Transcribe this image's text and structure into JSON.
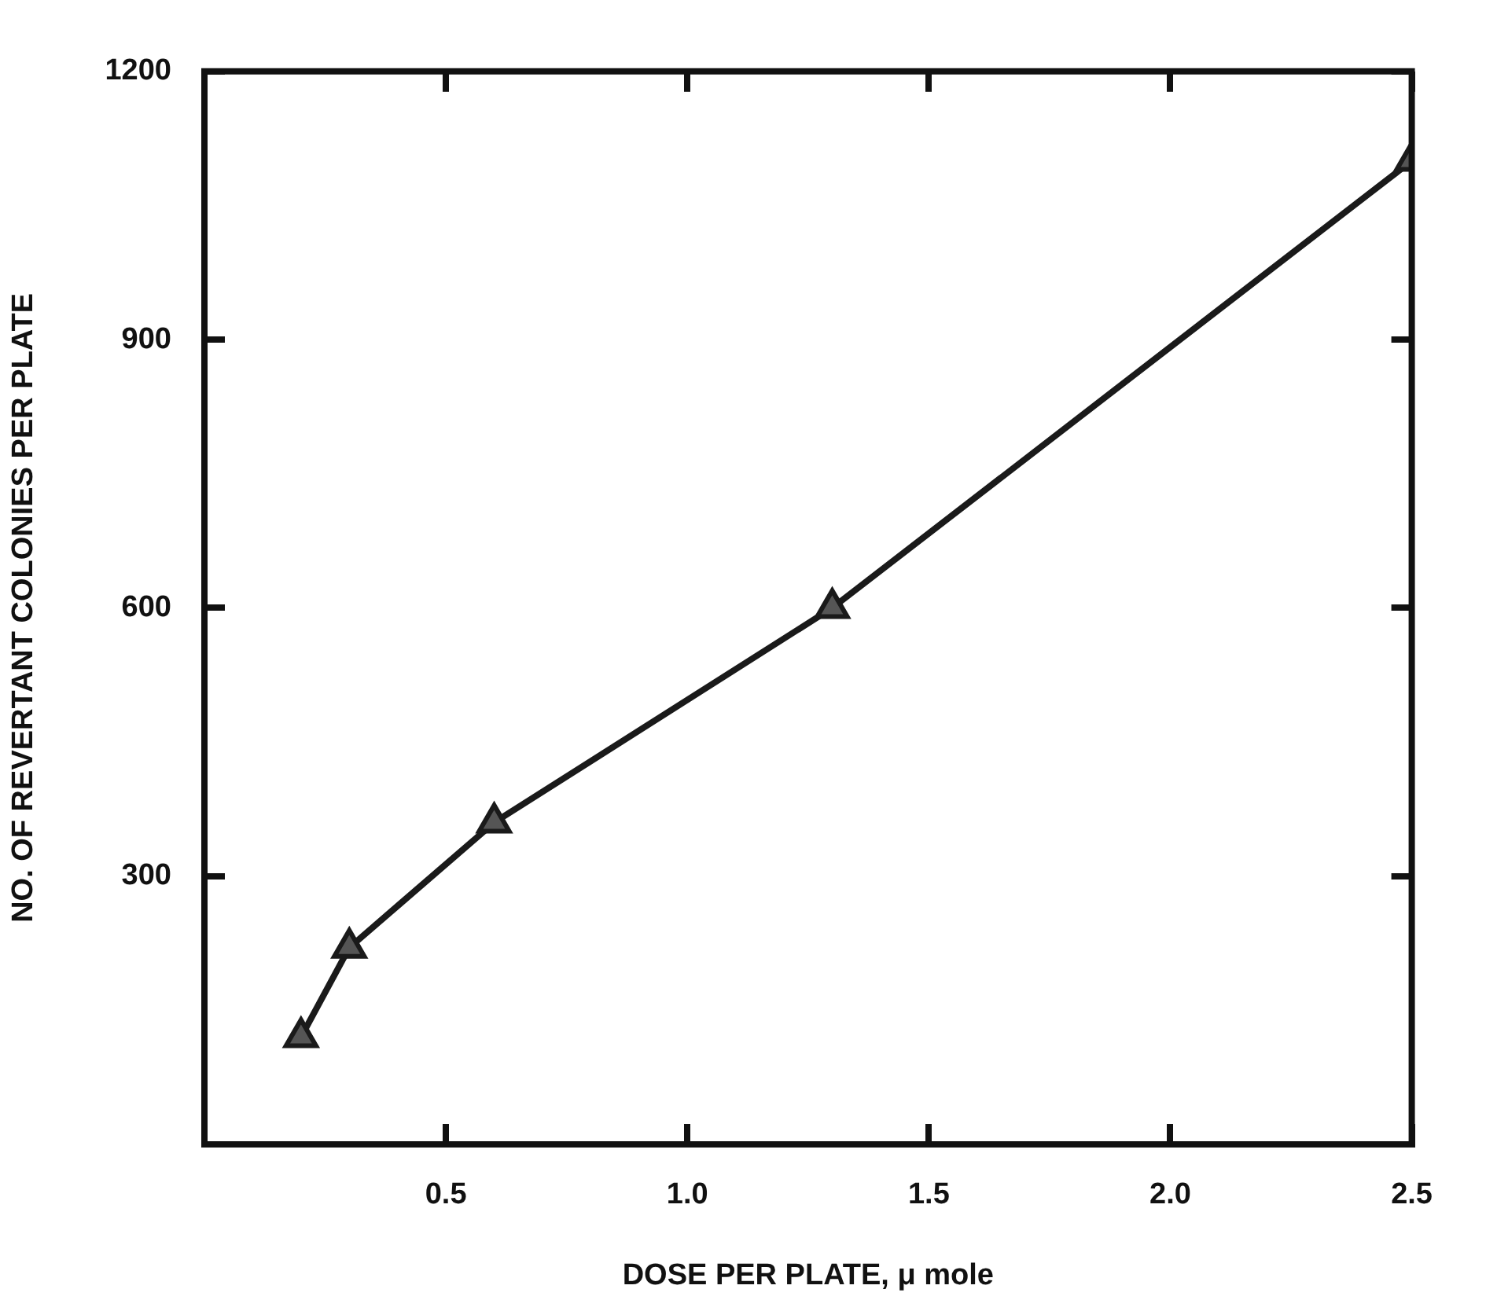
{
  "chart_data": {
    "type": "line",
    "xlabel": "DOSE PER PLATE, μ mole",
    "ylabel": "NO. OF REVERTANT COLONIES PER PLATE",
    "x": [
      0.2,
      0.3,
      0.6,
      1.3,
      2.5
    ],
    "series": [
      {
        "color": "#1a1a1a",
        "values": [
          120,
          220,
          360,
          600,
          1100
        ]
      }
    ],
    "xlim": [
      0,
      2.5
    ],
    "xticks": [
      0.5,
      {
        "value": 1,
        "label": "1.0"
      },
      1.5,
      {
        "value": 2,
        "label": "2.0"
      },
      2.5
    ],
    "ylim": [
      0,
      1200
    ],
    "yticks": [
      300,
      600,
      900,
      1200
    ],
    "marker": "triangle",
    "line_style": "solid",
    "grid": false,
    "legend": false
  }
}
